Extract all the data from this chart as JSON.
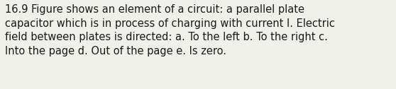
{
  "line1": "16.9 Figure shows an element of a circuit: a parallel plate",
  "line2": "capacitor which is in process of charging with current I. Electric",
  "line3": "field between plates is directed: a. To the left b. To the right c.",
  "line4": "Into the page d. Out of the page e. Is zero.",
  "background_color": "#f0f0eb",
  "text_color": "#1a1a1a",
  "font_size": 10.5,
  "fig_width": 5.58,
  "fig_height": 1.26,
  "dpi": 100,
  "font_family": "DejaVu Sans"
}
